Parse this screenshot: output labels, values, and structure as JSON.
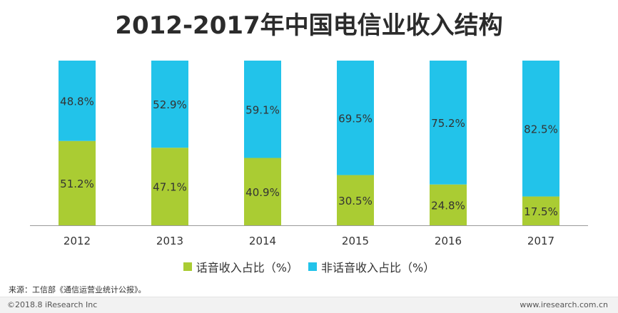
{
  "chart_data": {
    "type": "bar",
    "stacked": true,
    "title": "2012-2017年中国电信业收入结构",
    "categories": [
      "2012",
      "2013",
      "2014",
      "2015",
      "2016",
      "2017"
    ],
    "series": [
      {
        "name": "话音收入占比（%）",
        "color": "#aacc33",
        "values": [
          51.2,
          47.1,
          40.9,
          30.5,
          24.8,
          17.5
        ],
        "labels": [
          "51.2%",
          "47.1%",
          "40.9%",
          "30.5%",
          "24.8%",
          "17.5%"
        ]
      },
      {
        "name": "非话音收入占比（%）",
        "color": "#22c3ea",
        "values": [
          48.8,
          52.9,
          59.1,
          69.5,
          75.2,
          82.5
        ],
        "labels": [
          "48.8%",
          "52.9%",
          "59.1%",
          "69.5%",
          "75.2%",
          "82.5%"
        ]
      }
    ],
    "ylim": [
      0,
      100
    ],
    "xlabel": "",
    "ylabel": "",
    "legend": "bottom-center",
    "grid": false
  },
  "source": "来源：工信部《通信运营业统计公报》。",
  "footer": {
    "copyright": "©2018.8 iResearch Inc",
    "site": "www.iresearch.com.cn"
  }
}
